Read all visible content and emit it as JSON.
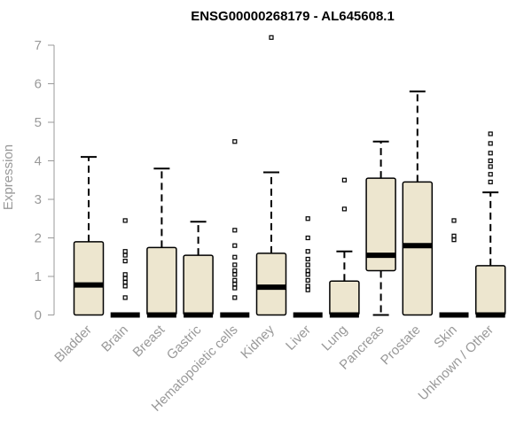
{
  "chart_data": {
    "type": "boxplot",
    "title": "ENSG00000268179 - AL645608.1",
    "ylabel": "Expression",
    "xlabel": "",
    "ylim": [
      0,
      7.3
    ],
    "yticks": [
      0,
      1,
      2,
      3,
      4,
      5,
      6,
      7
    ],
    "box_color": "#ede6cf",
    "categories": [
      "Bladder",
      "Brain",
      "Breast",
      "Gastric",
      "Hematopoietic cells",
      "Kidney",
      "Liver",
      "Lung",
      "Pancreas",
      "Prostate",
      "Skin",
      "Unknown / Other"
    ],
    "boxes": [
      {
        "whislo": 0,
        "q1": 0,
        "med": 0.78,
        "q3": 1.9,
        "whishi": 4.1,
        "fliers": []
      },
      {
        "whislo": 0,
        "q1": 0,
        "med": 0,
        "q3": 0,
        "whishi": 0,
        "fliers": [
          0.45,
          0.75,
          0.85,
          0.95,
          1.05,
          1.4,
          1.55,
          1.65,
          2.45
        ]
      },
      {
        "whislo": 0,
        "q1": 0,
        "med": 0,
        "q3": 1.75,
        "whishi": 3.8,
        "fliers": []
      },
      {
        "whislo": 0,
        "q1": 0,
        "med": 0,
        "q3": 1.55,
        "whishi": 2.42,
        "fliers": []
      },
      {
        "whislo": 0,
        "q1": 0,
        "med": 0,
        "q3": 0,
        "whishi": 0,
        "fliers": [
          0.45,
          0.7,
          0.8,
          0.9,
          1.05,
          1.15,
          1.3,
          1.5,
          1.8,
          2.2,
          4.5
        ]
      },
      {
        "whislo": 0,
        "q1": 0,
        "med": 0.72,
        "q3": 1.6,
        "whishi": 3.7,
        "fliers": [
          7.2
        ]
      },
      {
        "whislo": 0,
        "q1": 0,
        "med": 0,
        "q3": 0,
        "whishi": 0,
        "fliers": [
          0.65,
          0.75,
          0.9,
          1.05,
          1.15,
          1.3,
          1.45,
          1.65,
          2.0,
          2.5
        ]
      },
      {
        "whislo": 0,
        "q1": 0,
        "med": 0,
        "q3": 0.88,
        "whishi": 1.65,
        "fliers": [
          2.75,
          3.5
        ]
      },
      {
        "whislo": 0,
        "q1": 1.15,
        "med": 1.55,
        "q3": 3.55,
        "whishi": 4.5,
        "fliers": []
      },
      {
        "whislo": 0,
        "q1": 0,
        "med": 1.8,
        "q3": 3.45,
        "whishi": 5.8,
        "fliers": []
      },
      {
        "whislo": 0,
        "q1": 0,
        "med": 0,
        "q3": 0,
        "whishi": 0,
        "fliers": [
          1.95,
          2.05,
          2.45
        ]
      },
      {
        "whislo": 0,
        "q1": 0,
        "med": 0,
        "q3": 1.28,
        "whishi": 3.18,
        "fliers": [
          3.45,
          3.65,
          3.85,
          4.0,
          4.2,
          4.45,
          4.7
        ]
      }
    ]
  }
}
